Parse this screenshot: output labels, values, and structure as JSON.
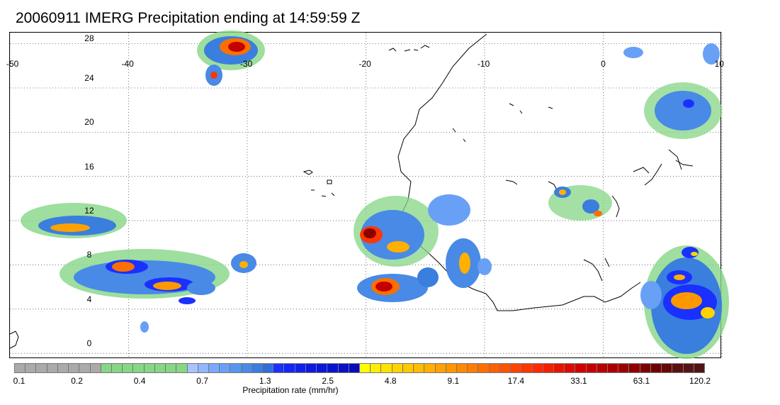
{
  "title": "20060911 IMERG Precipitation ending at 14:59:59 Z",
  "map": {
    "longitude_labels": [
      "-50",
      "-40",
      "-30",
      "-20",
      "-10",
      "0",
      "10"
    ],
    "latitude_labels": [
      "28",
      "24",
      "20",
      "16",
      "12",
      "8",
      "4",
      "0"
    ],
    "lon_range": [
      -50,
      10
    ],
    "lat_range": [
      -0.5,
      29
    ],
    "gridlines": "dotted"
  },
  "colorbar": {
    "title": "Precipitation rate (mm/hr)",
    "tick_labels": [
      "0.1",
      "0.2",
      "0.4",
      "0.7",
      "1.3",
      "2.5",
      "4.8",
      "9.1",
      "17.4",
      "33.1",
      "63.1",
      "120.2"
    ],
    "colors": [
      "#aaaaaa",
      "#aaaaaa",
      "#aaaaaa",
      "#aaaaaa",
      "#aaaaaa",
      "#aaaaaa",
      "#aaaaaa",
      "#aaaaaa",
      "#86d686",
      "#86d686",
      "#86d686",
      "#86d686",
      "#86d686",
      "#86d686",
      "#86d686",
      "#86d686",
      "#a8c4ff",
      "#90b8ff",
      "#7aaaff",
      "#68a0f6",
      "#5896ee",
      "#488ae6",
      "#3a7ede",
      "#2f6fd6",
      "#1a30ff",
      "#1426f4",
      "#1220ea",
      "#0f1ae0",
      "#0c18d8",
      "#0a14d0",
      "#0a10c6",
      "#080cbc",
      "#ffff00",
      "#ffee00",
      "#ffe200",
      "#ffd400",
      "#ffc800",
      "#ffbc00",
      "#ffb000",
      "#ffa200",
      "#ff9800",
      "#ff8a00",
      "#ff7c00",
      "#ff6e00",
      "#ff6000",
      "#ff5200",
      "#ff4400",
      "#ff3600",
      "#ff2800",
      "#f41e00",
      "#e81400",
      "#dc0a00",
      "#d00000",
      "#c40000",
      "#b80000",
      "#ac0000",
      "#9c0000",
      "#8c0000",
      "#7c0000",
      "#6e0000",
      "#640808",
      "#5c1010",
      "#561414",
      "#501414"
    ]
  },
  "precipitation_cells": [
    {
      "lon": -44,
      "lat": 12.5,
      "level": "moderate"
    },
    {
      "lon": -41,
      "lat": 9,
      "level": "heavy"
    },
    {
      "lon": -38,
      "lat": 7,
      "level": "heavy"
    },
    {
      "lon": -30.5,
      "lat": 29.5,
      "level": "very-heavy"
    },
    {
      "lon": -19.5,
      "lat": 11.8,
      "level": "extreme"
    },
    {
      "lon": -18.5,
      "lat": 6.8,
      "level": "extreme"
    },
    {
      "lon": -12,
      "lat": 9.2,
      "level": "heavy"
    },
    {
      "lon": 7,
      "lat": 6,
      "level": "heavy"
    },
    {
      "lon": 7,
      "lat": 9,
      "level": "moderate"
    },
    {
      "lon": 7,
      "lat": 24,
      "level": "moderate"
    }
  ]
}
